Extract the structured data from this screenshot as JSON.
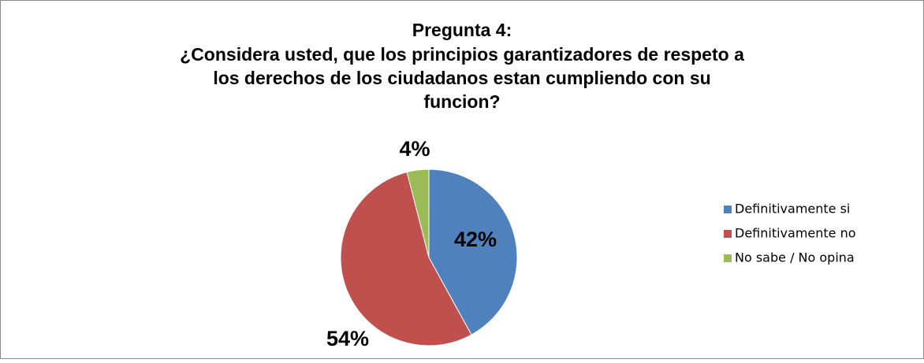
{
  "chart_data": {
    "type": "pie",
    "title": [
      "Pregunta 4:",
      "¿Considera usted, que los principios garantizadores de respeto a",
      "los derechos de los ciudadanos estan cumpliendo con su",
      "funcion?"
    ],
    "categories": [
      "Definitivamente si",
      "Definitivamente no",
      "No sabe / No opina"
    ],
    "values": [
      42,
      54,
      4
    ],
    "value_labels": [
      "42%",
      "54%",
      "4%"
    ],
    "colors": [
      "#4f81bd",
      "#c0504d",
      "#9bbb59"
    ],
    "legend": "right"
  }
}
